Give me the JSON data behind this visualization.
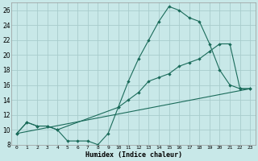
{
  "background_color": "#c8e8e8",
  "grid_color": "#a8cccc",
  "line_color": "#1a6b5a",
  "xlabel": "Humidex (Indice chaleur)",
  "xlim": [
    -0.5,
    23.5
  ],
  "ylim": [
    8,
    27
  ],
  "yticks": [
    8,
    10,
    12,
    14,
    16,
    18,
    20,
    22,
    24,
    26
  ],
  "xticks": [
    0,
    1,
    2,
    3,
    4,
    5,
    6,
    7,
    8,
    9,
    10,
    11,
    12,
    13,
    14,
    15,
    16,
    17,
    18,
    19,
    20,
    21,
    22,
    23
  ],
  "line1_x": [
    0,
    1,
    2,
    3,
    4,
    5,
    6,
    7,
    8,
    9,
    10,
    11,
    12,
    13,
    14,
    15,
    16,
    17,
    18,
    19,
    20,
    21,
    22,
    23
  ],
  "line1_y": [
    9.5,
    11.0,
    10.5,
    10.5,
    10.0,
    8.5,
    8.5,
    8.5,
    8.0,
    9.5,
    13.0,
    16.5,
    19.5,
    22.0,
    24.5,
    26.5,
    26.0,
    25.0,
    24.5,
    21.5,
    18.0,
    16.0,
    15.5,
    15.5
  ],
  "line2_x": [
    0,
    1,
    2,
    3,
    4,
    10,
    11,
    12,
    13,
    14,
    15,
    16,
    17,
    18,
    19,
    20,
    21,
    22,
    23
  ],
  "line2_y": [
    9.5,
    11.0,
    10.5,
    10.5,
    10.0,
    13.0,
    14.0,
    15.0,
    16.5,
    17.0,
    17.5,
    18.5,
    19.0,
    19.5,
    20.5,
    21.5,
    21.5,
    15.5,
    15.5
  ],
  "line3_x": [
    0,
    23
  ],
  "line3_y": [
    9.5,
    15.5
  ]
}
